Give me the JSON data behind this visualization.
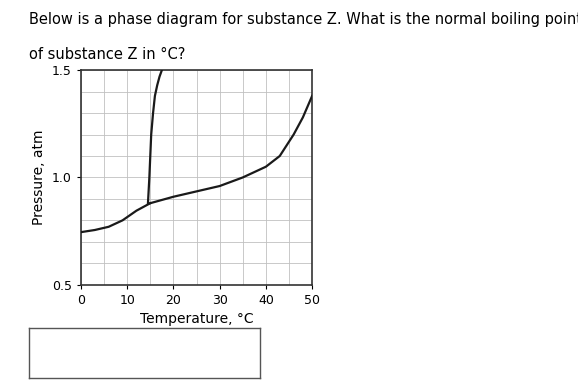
{
  "title_line1": "Below is a phase diagram for substance Z. What is the normal boiling point",
  "title_line2": "of substance Z in °C?",
  "xlabel": "Temperature, °C",
  "ylabel": "Pressure, atm",
  "xlim": [
    0,
    50
  ],
  "ylim": [
    0.5,
    1.5
  ],
  "xticks": [
    0,
    10,
    20,
    30,
    40,
    50
  ],
  "yticks": [
    0.5,
    1.0,
    1.5
  ],
  "background_color": "#ffffff",
  "line_color": "#1a1a1a",
  "grid_color": "#c0c0c0",
  "sl_T": [
    14.5,
    14.8,
    15.0,
    15.2,
    15.6,
    16.0,
    16.5,
    17.0,
    17.5
  ],
  "sl_P": [
    0.88,
    1.0,
    1.1,
    1.2,
    1.3,
    1.38,
    1.43,
    1.47,
    1.5
  ],
  "lv_T": [
    15.0,
    20,
    25,
    30,
    35,
    40,
    43,
    46,
    48,
    50
  ],
  "lv_P": [
    0.88,
    0.91,
    0.935,
    0.96,
    1.0,
    1.05,
    1.1,
    1.2,
    1.28,
    1.38
  ],
  "sv_T": [
    0,
    3,
    6,
    9,
    12,
    15.0
  ],
  "sv_P": [
    0.745,
    0.755,
    0.77,
    0.8,
    0.845,
    0.88
  ]
}
